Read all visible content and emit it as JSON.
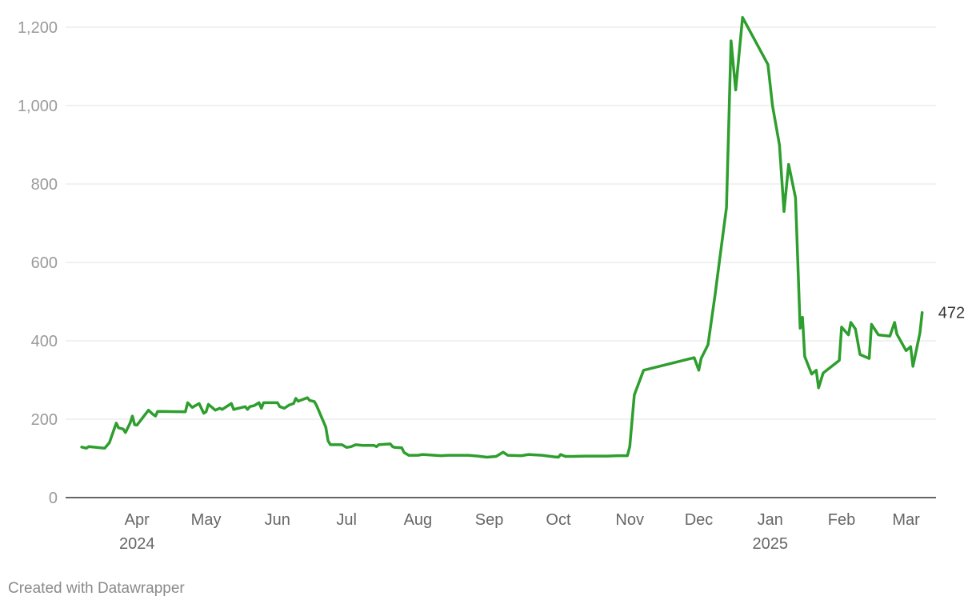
{
  "chart_data": {
    "type": "line",
    "title": "",
    "xlabel": "",
    "ylabel": "",
    "x_axis": {
      "ticks": [
        {
          "label": "Apr",
          "year": "2024",
          "date": "2024-04-01"
        },
        {
          "label": "May",
          "year": "",
          "date": "2024-05-01"
        },
        {
          "label": "Jun",
          "year": "",
          "date": "2024-06-01"
        },
        {
          "label": "Jul",
          "year": "",
          "date": "2024-07-01"
        },
        {
          "label": "Aug",
          "year": "",
          "date": "2024-08-01"
        },
        {
          "label": "Sep",
          "year": "",
          "date": "2024-09-01"
        },
        {
          "label": "Oct",
          "year": "",
          "date": "2024-10-01"
        },
        {
          "label": "Nov",
          "year": "",
          "date": "2024-11-01"
        },
        {
          "label": "Dec",
          "year": "",
          "date": "2024-12-01"
        },
        {
          "label": "Jan",
          "year": "2025",
          "date": "2025-01-01"
        },
        {
          "label": "Feb",
          "year": "",
          "date": "2025-02-01"
        },
        {
          "label": "Mar",
          "year": "",
          "date": "2025-03-01"
        }
      ],
      "range": [
        "2024-03-01",
        "2025-03-14"
      ]
    },
    "y_axis": {
      "ticks": [
        0,
        200,
        400,
        600,
        800,
        1000,
        1200
      ],
      "tick_labels": [
        "0",
        "200",
        "400",
        "600",
        "800",
        "1,000",
        "1,200"
      ],
      "ylim": [
        0,
        1200
      ],
      "grid": true
    },
    "end_label": "472",
    "series": [
      {
        "color": "#2e9e2e",
        "points": [
          [
            "2024-03-08",
            129
          ],
          [
            "2024-03-10",
            126
          ],
          [
            "2024-03-11",
            130
          ],
          [
            "2024-03-18",
            126
          ],
          [
            "2024-03-20",
            140
          ],
          [
            "2024-03-23",
            190
          ],
          [
            "2024-03-24",
            178
          ],
          [
            "2024-03-26",
            175
          ],
          [
            "2024-03-27",
            166
          ],
          [
            "2024-03-29",
            190
          ],
          [
            "2024-03-30",
            208
          ],
          [
            "2024-03-31",
            186
          ],
          [
            "2024-04-01",
            185
          ],
          [
            "2024-04-06",
            223
          ],
          [
            "2024-04-08",
            212
          ],
          [
            "2024-04-09",
            208
          ],
          [
            "2024-04-10",
            220
          ],
          [
            "2024-04-22",
            219
          ],
          [
            "2024-04-23",
            242
          ],
          [
            "2024-04-25",
            230
          ],
          [
            "2024-04-28",
            240
          ],
          [
            "2024-04-30",
            215
          ],
          [
            "2024-05-01",
            219
          ],
          [
            "2024-05-02",
            238
          ],
          [
            "2024-05-05",
            223
          ],
          [
            "2024-05-07",
            228
          ],
          [
            "2024-05-08",
            225
          ],
          [
            "2024-05-12",
            240
          ],
          [
            "2024-05-13",
            225
          ],
          [
            "2024-05-18",
            232
          ],
          [
            "2024-05-19",
            225
          ],
          [
            "2024-05-20",
            232
          ],
          [
            "2024-05-22",
            235
          ],
          [
            "2024-05-24",
            242
          ],
          [
            "2024-05-25",
            228
          ],
          [
            "2024-05-26",
            242
          ],
          [
            "2024-06-01",
            242
          ],
          [
            "2024-06-02",
            232
          ],
          [
            "2024-06-04",
            228
          ],
          [
            "2024-06-06",
            236
          ],
          [
            "2024-06-08",
            240
          ],
          [
            "2024-06-09",
            253
          ],
          [
            "2024-06-10",
            246
          ],
          [
            "2024-06-14",
            255
          ],
          [
            "2024-06-15",
            248
          ],
          [
            "2024-06-17",
            245
          ],
          [
            "2024-06-18",
            235
          ],
          [
            "2024-06-22",
            180
          ],
          [
            "2024-06-23",
            145
          ],
          [
            "2024-06-24",
            135
          ],
          [
            "2024-06-29",
            135
          ],
          [
            "2024-07-01",
            128
          ],
          [
            "2024-07-03",
            130
          ],
          [
            "2024-07-05",
            135
          ],
          [
            "2024-07-08",
            133
          ],
          [
            "2024-07-13",
            133
          ],
          [
            "2024-07-14",
            130
          ],
          [
            "2024-07-15",
            135
          ],
          [
            "2024-07-20",
            137
          ],
          [
            "2024-07-21",
            130
          ],
          [
            "2024-07-22",
            128
          ],
          [
            "2024-07-25",
            127
          ],
          [
            "2024-07-26",
            115
          ],
          [
            "2024-07-28",
            108
          ],
          [
            "2024-08-01",
            108
          ],
          [
            "2024-08-03",
            110
          ],
          [
            "2024-08-11",
            107
          ],
          [
            "2024-08-14",
            108
          ],
          [
            "2024-08-23",
            108
          ],
          [
            "2024-08-27",
            106
          ],
          [
            "2024-08-31",
            103
          ],
          [
            "2024-09-04",
            105
          ],
          [
            "2024-09-07",
            116
          ],
          [
            "2024-09-09",
            108
          ],
          [
            "2024-09-15",
            107
          ],
          [
            "2024-09-18",
            110
          ],
          [
            "2024-09-24",
            108
          ],
          [
            "2024-09-29",
            104
          ],
          [
            "2024-10-01",
            103
          ],
          [
            "2024-10-02",
            110
          ],
          [
            "2024-10-04",
            105
          ],
          [
            "2024-10-07",
            105
          ],
          [
            "2024-10-13",
            106
          ],
          [
            "2024-10-22",
            106
          ],
          [
            "2024-10-27",
            107
          ],
          [
            "2024-10-31",
            107
          ],
          [
            "2024-11-01",
            130
          ],
          [
            "2024-11-03",
            262
          ],
          [
            "2024-11-07",
            325
          ],
          [
            "2024-11-29",
            357
          ],
          [
            "2024-12-01",
            325
          ],
          [
            "2024-12-02",
            355
          ],
          [
            "2024-12-05",
            390
          ],
          [
            "2024-12-08",
            515
          ],
          [
            "2024-12-10",
            605
          ],
          [
            "2024-12-13",
            740
          ],
          [
            "2024-12-15",
            1165
          ],
          [
            "2024-12-17",
            1040
          ],
          [
            "2024-12-20",
            1225
          ],
          [
            "2024-12-31",
            1105
          ],
          [
            "2025-01-02",
            1000
          ],
          [
            "2025-01-05",
            900
          ],
          [
            "2025-01-07",
            730
          ],
          [
            "2025-01-09",
            850
          ],
          [
            "2025-01-12",
            765
          ],
          [
            "2025-01-14",
            432
          ],
          [
            "2025-01-15",
            460
          ],
          [
            "2025-01-16",
            360
          ],
          [
            "2025-01-19",
            315
          ],
          [
            "2025-01-21",
            325
          ],
          [
            "2025-01-22",
            280
          ],
          [
            "2025-01-24",
            318
          ],
          [
            "2025-01-31",
            350
          ],
          [
            "2025-02-01",
            435
          ],
          [
            "2025-02-04",
            415
          ],
          [
            "2025-02-05",
            447
          ],
          [
            "2025-02-07",
            430
          ],
          [
            "2025-02-09",
            365
          ],
          [
            "2025-02-13",
            355
          ],
          [
            "2025-02-14",
            442
          ],
          [
            "2025-02-17",
            415
          ],
          [
            "2025-02-22",
            412
          ],
          [
            "2025-02-24",
            447
          ],
          [
            "2025-02-25",
            417
          ],
          [
            "2025-03-01",
            375
          ],
          [
            "2025-03-03",
            385
          ],
          [
            "2025-03-04",
            335
          ],
          [
            "2025-03-07",
            420
          ],
          [
            "2025-03-08",
            472
          ]
        ]
      }
    ]
  },
  "credit": "Created with Datawrapper"
}
